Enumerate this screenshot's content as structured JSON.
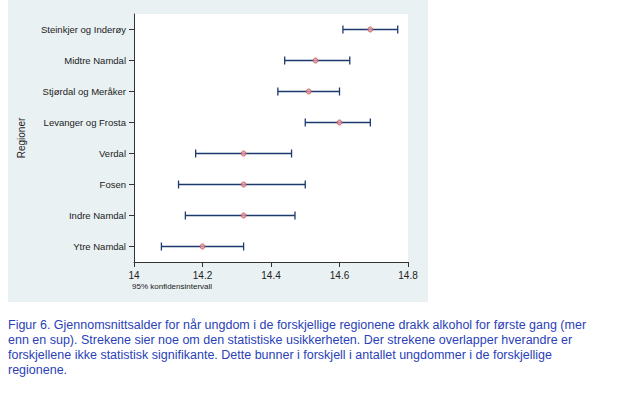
{
  "chart_data": {
    "type": "errorbar_dot",
    "orientation": "horizontal",
    "y_label": "Regioner",
    "x_label": "95% konfidensintervall",
    "caption": "Figur 6. Gjennomsnittsalder for når ungdom i de forskjellige regionene drakk alkohol for første gang (mer enn en sup). Strekene sier noe om den statistiske usikkerheten. Der strekene overlapper hverandre er forskjellene ikke statistisk signifikante. Dette bunner i forskjell i antallet ungdommer i de forskjellige regionene.",
    "categories": [
      "Steinkjer og Inderøy",
      "Midtre Namdal",
      "Stjørdal og Meråker",
      "Levanger og Frosta",
      "Verdal",
      "Fosen",
      "Indre Namdal",
      "Ytre Namdal"
    ],
    "values": [
      14.69,
      14.53,
      14.51,
      14.6,
      14.32,
      14.32,
      14.32,
      14.2
    ],
    "ci_low": [
      14.61,
      14.44,
      14.42,
      14.5,
      14.18,
      14.13,
      14.15,
      14.08
    ],
    "ci_high": [
      14.77,
      14.63,
      14.6,
      14.69,
      14.46,
      14.5,
      14.47,
      14.32
    ],
    "color": "#c0504d",
    "xlim": [
      14,
      14.8
    ],
    "xticks": [
      14,
      14.2,
      14.4,
      14.6,
      14.8
    ],
    "grid": false
  }
}
